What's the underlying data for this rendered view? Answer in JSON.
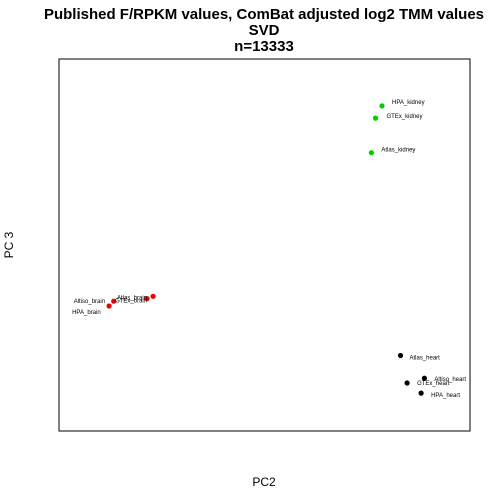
{
  "chart_data": {
    "type": "scatter",
    "title_lines": [
      "Published F/RPKM values, ComBat adjusted log2 TMM values",
      "SVD",
      "n=13333"
    ],
    "xlabel": "PC2",
    "ylabel": "PC 3",
    "grid": false,
    "legend": "none",
    "axis_ticks_shown": false,
    "xlim": [
      0,
      100
    ],
    "ylim": [
      0,
      100
    ],
    "points": [
      {
        "label": "HPA_kidney",
        "x": 78.6,
        "y": 87.4,
        "color": "#00cc00"
      },
      {
        "label": "GTEx_kidney",
        "x": 77.0,
        "y": 84.1,
        "color": "#00cc00"
      },
      {
        "label": "Atlas_kidney",
        "x": 76.0,
        "y": 74.8,
        "color": "#00cc00"
      },
      {
        "label": "Atlas_brain",
        "x": 21.4,
        "y": 35.6,
        "color": "#ee0000"
      },
      {
        "label": "Altiso_brain",
        "x": 13.3,
        "y": 34.9,
        "color": "#ee0000"
      },
      {
        "label": "GTEx_brain",
        "x": 22.9,
        "y": 36.2,
        "color": "#ee0000"
      },
      {
        "label": "HPA_brain",
        "x": 12.2,
        "y": 33.6,
        "color": "#ee0000"
      },
      {
        "label": "Atlas_heart",
        "x": 83.1,
        "y": 20.3,
        "color": "#000000"
      },
      {
        "label": "Altiso_heart",
        "x": 88.9,
        "y": 14.2,
        "color": "#000000"
      },
      {
        "label": "GTEx_heart",
        "x": 84.7,
        "y": 12.9,
        "color": "#000000"
      },
      {
        "label": "HPA_heart",
        "x": 88.1,
        "y": 10.2,
        "color": "#000000"
      }
    ]
  }
}
